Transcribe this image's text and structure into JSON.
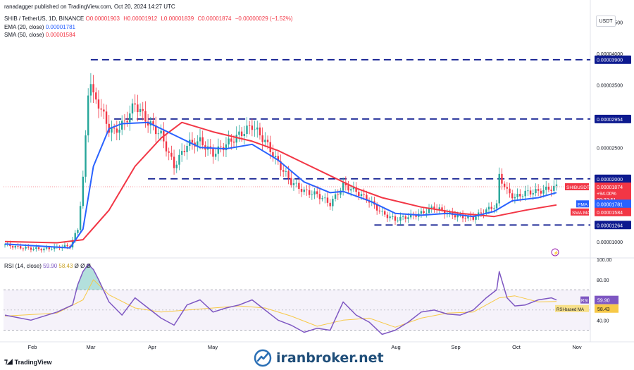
{
  "publisher": "ranadagger published on TradingView.com, Oct 20, 2024 14:27 UTC",
  "symbol_line": "SHIB / TetherUS, 1D, BINANCE",
  "ohlc": {
    "o": "O0.00001903",
    "h": "H0.00001912",
    "l": "L0.00001839",
    "c": "C0.00001874",
    "chg": "−0.00000029 (−1.52%)"
  },
  "indicators": {
    "ema": {
      "label": "EMA (20, close)",
      "value": "0.00001781",
      "color": "#2962ff"
    },
    "sma": {
      "label": "SMA (50, close)",
      "value": "0.00001584",
      "color": "#f23645"
    }
  },
  "currency_label": "USDT",
  "rsi_header": {
    "label": "RSI (14, close)",
    "rsi": "59.90",
    "ma": "58.43",
    "extra": "Ø Ø Ø"
  },
  "tv_brand": "TradingView",
  "watermark": "iranbroker.net",
  "colors": {
    "up": "#26a69a",
    "down": "#f23645",
    "ema": "#2962ff",
    "sma": "#f23645",
    "rsi": "#7e57c2",
    "rsi_ma": "#f7c948",
    "hline": "#0d1a8f"
  },
  "chart_data": [
    {
      "type": "candlestick",
      "title": "SHIB / TetherUS, 1D, BINANCE",
      "x_ticks": [
        "Feb",
        "Mar",
        "Apr",
        "May",
        "Aug",
        "Sep",
        "Oct",
        "Nov"
      ],
      "y_ticks": [
        "0.00004500",
        "0.00004000",
        "0.00003500",
        "0.00002500",
        "0.00001000"
      ],
      "ylim": [
        7.5e-06,
        4.65e-05
      ],
      "scale": "linear",
      "horizontal_levels": [
        {
          "value": 3.9e-05,
          "label": "0.00003900"
        },
        {
          "value": 2.954e-05,
          "label": "0.00002954"
        },
        {
          "value": 2e-05,
          "label": "0.00002000"
        },
        {
          "value": 1.264e-05,
          "label": "0.00001264"
        }
      ],
      "price_tags": [
        {
          "label": "SHIBUSDT",
          "value": "0.00001874",
          "extra": [
            "+94.00%",
            "09:32:51"
          ]
        },
        {
          "label": "EMA",
          "value": "0.00001781"
        },
        {
          "label": "SMA:MA",
          "value": "0.00001584"
        }
      ],
      "close_series": [
        [
          0,
          9.5e-06
        ],
        [
          5,
          9.1e-06
        ],
        [
          10,
          8.9e-06
        ],
        [
          15,
          8.8e-06
        ],
        [
          20,
          9.1e-06
        ],
        [
          25,
          9.3e-06
        ],
        [
          28,
          1.2e-05
        ],
        [
          30,
          2e-05
        ],
        [
          31,
          2.65e-05
        ],
        [
          32,
          3.4e-05
        ],
        [
          33,
          3.55e-05
        ],
        [
          34,
          3.3e-05
        ],
        [
          36,
          3.2e-05
        ],
        [
          38,
          3e-05
        ],
        [
          40,
          2.8e-05
        ],
        [
          42,
          2.75e-05
        ],
        [
          46,
          2.9e-05
        ],
        [
          50,
          3.2e-05
        ],
        [
          55,
          2.9e-05
        ],
        [
          60,
          2.7e-05
        ],
        [
          65,
          2.2e-05
        ],
        [
          70,
          2.55e-05
        ],
        [
          75,
          2.6e-05
        ],
        [
          80,
          2.4e-05
        ],
        [
          85,
          2.55e-05
        ],
        [
          90,
          2.7e-05
        ],
        [
          95,
          2.85e-05
        ],
        [
          100,
          2.6e-05
        ],
        [
          105,
          2.25e-05
        ],
        [
          110,
          1.95e-05
        ],
        [
          115,
          1.8e-05
        ],
        [
          120,
          1.75e-05
        ],
        [
          125,
          1.6e-05
        ],
        [
          130,
          1.9e-05
        ],
        [
          135,
          1.8e-05
        ],
        [
          140,
          1.65e-05
        ],
        [
          145,
          1.45e-05
        ],
        [
          150,
          1.35e-05
        ],
        [
          155,
          1.4e-05
        ],
        [
          160,
          1.45e-05
        ],
        [
          165,
          1.55e-05
        ],
        [
          170,
          1.45e-05
        ],
        [
          175,
          1.4e-05
        ],
        [
          180,
          1.38e-05
        ],
        [
          185,
          1.5e-05
        ],
        [
          189,
          1.58e-05
        ],
        [
          190,
          2.05e-05
        ],
        [
          193,
          1.8e-05
        ],
        [
          196,
          1.7e-05
        ],
        [
          200,
          1.78e-05
        ],
        [
          205,
          1.8e-05
        ],
        [
          210,
          1.85e-05
        ],
        [
          212,
          1.874e-05
        ]
      ],
      "ema_series": [
        [
          0,
          9.6e-06
        ],
        [
          25,
          9e-06
        ],
        [
          30,
          1.2e-05
        ],
        [
          34,
          2.2e-05
        ],
        [
          40,
          2.8e-05
        ],
        [
          45,
          2.88e-05
        ],
        [
          55,
          2.9e-05
        ],
        [
          65,
          2.7e-05
        ],
        [
          75,
          2.5e-05
        ],
        [
          85,
          2.48e-05
        ],
        [
          95,
          2.55e-05
        ],
        [
          105,
          2.3e-05
        ],
        [
          115,
          1.95e-05
        ],
        [
          125,
          1.78e-05
        ],
        [
          130,
          1.8e-05
        ],
        [
          140,
          1.65e-05
        ],
        [
          150,
          1.45e-05
        ],
        [
          160,
          1.42e-05
        ],
        [
          170,
          1.45e-05
        ],
        [
          180,
          1.4e-05
        ],
        [
          188,
          1.48e-05
        ],
        [
          195,
          1.65e-05
        ],
        [
          205,
          1.7e-05
        ],
        [
          212,
          1.781e-05
        ]
      ],
      "sma_series": [
        [
          0,
          1e-05
        ],
        [
          20,
          9.8e-06
        ],
        [
          30,
          1.03e-05
        ],
        [
          40,
          1.5e-05
        ],
        [
          50,
          2.2e-05
        ],
        [
          60,
          2.65e-05
        ],
        [
          68,
          2.9e-05
        ],
        [
          80,
          2.75e-05
        ],
        [
          95,
          2.6e-05
        ],
        [
          105,
          2.45e-05
        ],
        [
          115,
          2.25e-05
        ],
        [
          125,
          2.05e-05
        ],
        [
          135,
          1.85e-05
        ],
        [
          145,
          1.7e-05
        ],
        [
          160,
          1.55e-05
        ],
        [
          175,
          1.45e-05
        ],
        [
          188,
          1.4e-05
        ],
        [
          200,
          1.5e-05
        ],
        [
          212,
          1.584e-05
        ]
      ]
    },
    {
      "type": "line",
      "title": "RSI (14, close)",
      "y_ticks": [
        "100.00",
        "80.00",
        "40.00"
      ],
      "ylim": [
        20,
        100
      ],
      "bands": [
        70,
        30
      ],
      "series": [
        {
          "name": "RSI",
          "values": [
            [
              0,
              45
            ],
            [
              10,
              40
            ],
            [
              20,
              48
            ],
            [
              26,
              55
            ],
            [
              28,
              75
            ],
            [
              30,
              88
            ],
            [
              32,
              95
            ],
            [
              34,
              90
            ],
            [
              36,
              80
            ],
            [
              40,
              58
            ],
            [
              45,
              45
            ],
            [
              50,
              62
            ],
            [
              55,
              52
            ],
            [
              60,
              42
            ],
            [
              65,
              35
            ],
            [
              70,
              55
            ],
            [
              75,
              60
            ],
            [
              80,
              48
            ],
            [
              85,
              52
            ],
            [
              90,
              55
            ],
            [
              95,
              60
            ],
            [
              100,
              50
            ],
            [
              105,
              40
            ],
            [
              110,
              35
            ],
            [
              115,
              28
            ],
            [
              120,
              32
            ],
            [
              125,
              30
            ],
            [
              130,
              58
            ],
            [
              135,
              45
            ],
            [
              140,
              38
            ],
            [
              145,
              26
            ],
            [
              150,
              30
            ],
            [
              155,
              38
            ],
            [
              160,
              48
            ],
            [
              165,
              50
            ],
            [
              170,
              46
            ],
            [
              175,
              45
            ],
            [
              180,
              50
            ],
            [
              185,
              62
            ],
            [
              189,
              70
            ],
            [
              190,
              88
            ],
            [
              193,
              62
            ],
            [
              196,
              54
            ],
            [
              200,
              55
            ],
            [
              205,
              60
            ],
            [
              210,
              62
            ],
            [
              212,
              59.9
            ]
          ]
        },
        {
          "name": "RSI-based MA",
          "values": [
            [
              0,
              44
            ],
            [
              20,
              47
            ],
            [
              30,
              60
            ],
            [
              34,
              80
            ],
            [
              40,
              65
            ],
            [
              50,
              52
            ],
            [
              60,
              48
            ],
            [
              70,
              50
            ],
            [
              80,
              52
            ],
            [
              90,
              54
            ],
            [
              100,
              52
            ],
            [
              110,
              44
            ],
            [
              120,
              34
            ],
            [
              130,
              40
            ],
            [
              140,
              42
            ],
            [
              150,
              33
            ],
            [
              160,
              42
            ],
            [
              170,
              47
            ],
            [
              180,
              48
            ],
            [
              190,
              62
            ],
            [
              196,
              64
            ],
            [
              205,
              58
            ],
            [
              212,
              58.43
            ]
          ]
        }
      ]
    }
  ],
  "axis_values": {
    "rsi_tag": "59.90",
    "rsi_ma_tag": "58.43"
  }
}
